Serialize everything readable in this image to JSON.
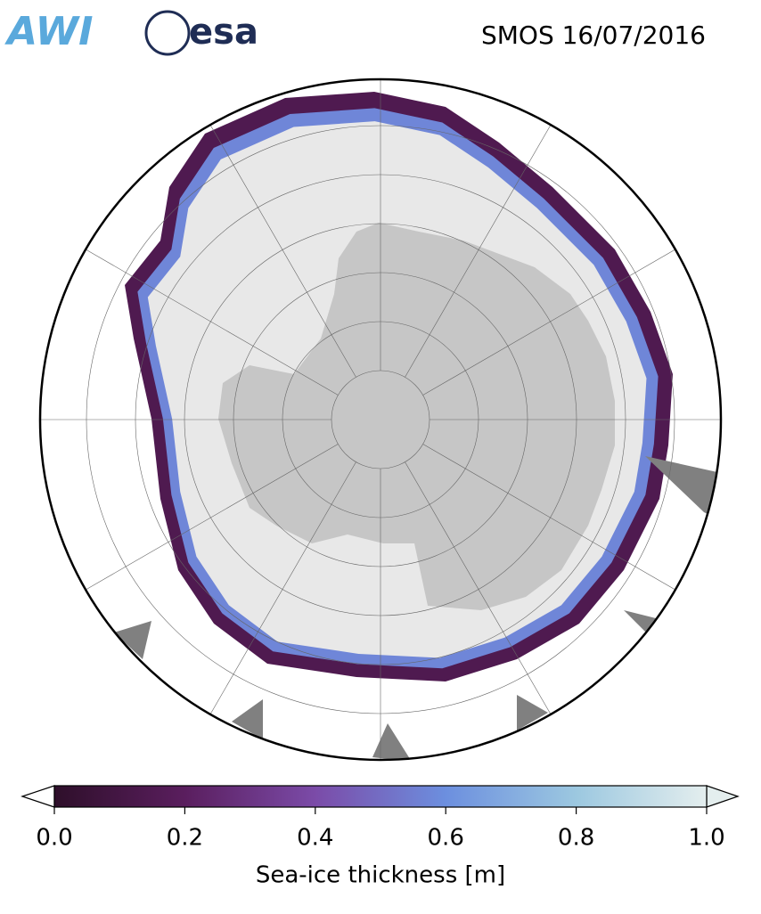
{
  "header": {
    "logos": [
      "AWI",
      "esa"
    ],
    "title": "SMOS 16/07/2016"
  },
  "colorbar": {
    "label": "Sea-ice thickness [m]",
    "lim": [
      0,
      1
    ],
    "ticks": [
      {
        "value": 0,
        "label": "0.0"
      },
      {
        "value": 0.2,
        "label": "0.2"
      },
      {
        "value": 0.4,
        "label": "0.4"
      },
      {
        "value": 0.6,
        "label": "0.6"
      },
      {
        "value": 0.8,
        "label": "0.8"
      },
      {
        "value": 1,
        "label": "1.0"
      }
    ],
    "colors": [
      "#2e0f2a",
      "#5a1e5e",
      "#7b4ba8",
      "#6c8fdf",
      "#9cc8e0",
      "#e4eeee"
    ]
  }
}
